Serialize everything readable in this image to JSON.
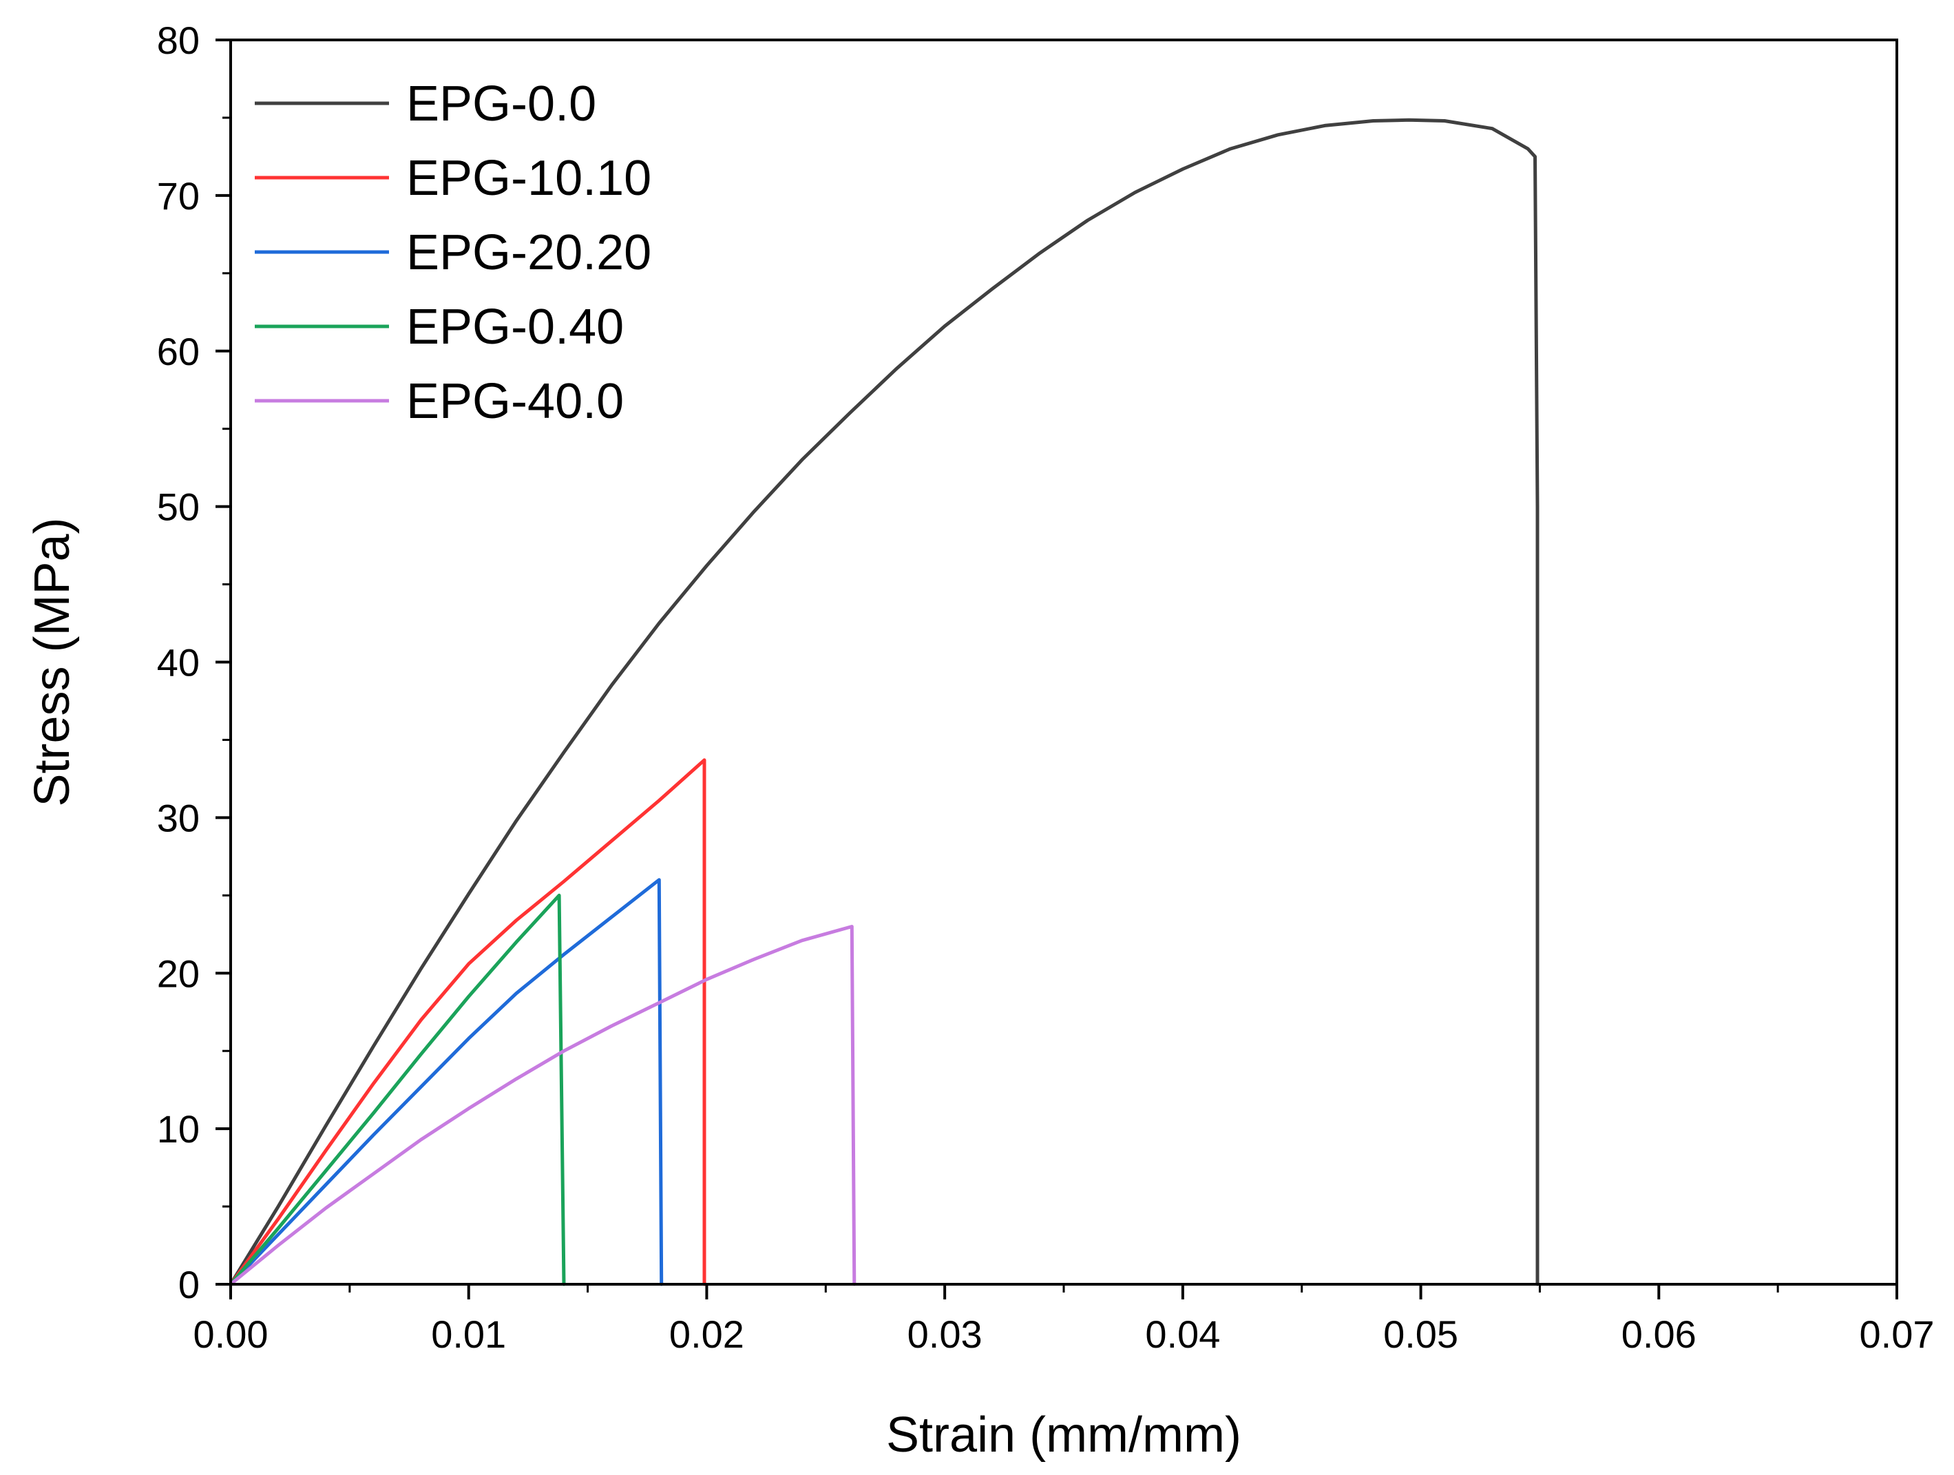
{
  "chart_data": {
    "type": "line",
    "title": "",
    "xlabel": "Strain (mm/mm)",
    "ylabel": "Stress (MPa)",
    "xlim": [
      0,
      0.07
    ],
    "ylim": [
      0,
      80
    ],
    "xticks": [
      0.0,
      0.01,
      0.02,
      0.03,
      0.04,
      0.05,
      0.06,
      0.07
    ],
    "yticks": [
      0,
      10,
      20,
      30,
      40,
      50,
      60,
      70,
      80
    ],
    "xtick_labels": [
      "0.00",
      "0.01",
      "0.02",
      "0.03",
      "0.04",
      "0.05",
      "0.06",
      "0.07"
    ],
    "ytick_labels": [
      "0",
      "10",
      "20",
      "30",
      "40",
      "50",
      "60",
      "70",
      "80"
    ],
    "grid": false,
    "legend_position": "top-left",
    "series": [
      {
        "name": "EPG-0.0",
        "color": "#404040",
        "x": [
          0,
          0.002,
          0.004,
          0.006,
          0.008,
          0.01,
          0.012,
          0.014,
          0.016,
          0.018,
          0.02,
          0.022,
          0.024,
          0.026,
          0.028,
          0.03,
          0.032,
          0.034,
          0.036,
          0.038,
          0.04,
          0.042,
          0.044,
          0.046,
          0.048,
          0.0495,
          0.051,
          0.053,
          0.0545,
          0.0548,
          0.0549,
          0.0549
        ],
        "y": [
          0,
          5.0,
          10.2,
          15.3,
          20.3,
          25.1,
          29.8,
          34.2,
          38.5,
          42.5,
          46.2,
          49.7,
          53.0,
          56.0,
          58.9,
          61.6,
          64.0,
          66.3,
          68.4,
          70.2,
          71.7,
          73.0,
          73.9,
          74.5,
          74.8,
          74.85,
          74.8,
          74.3,
          73.0,
          72.5,
          50.0,
          0
        ]
      },
      {
        "name": "EPG-10.10",
        "color": "#FF3333",
        "x": [
          0,
          0.002,
          0.004,
          0.006,
          0.008,
          0.01,
          0.012,
          0.014,
          0.016,
          0.018,
          0.0199,
          0.0199
        ],
        "y": [
          0,
          4.2,
          8.6,
          12.9,
          17.0,
          20.6,
          23.4,
          25.9,
          28.5,
          31.1,
          33.7,
          0
        ]
      },
      {
        "name": "EPG-20.20",
        "color": "#1F6BD9",
        "x": [
          0,
          0.002,
          0.004,
          0.006,
          0.008,
          0.01,
          0.012,
          0.014,
          0.016,
          0.018,
          0.0181
        ],
        "y": [
          0,
          3.2,
          6.4,
          9.6,
          12.7,
          15.8,
          18.7,
          21.2,
          23.6,
          26.0,
          0
        ]
      },
      {
        "name": "EPG-0.40",
        "color": "#1AA35A",
        "x": [
          0,
          0.002,
          0.004,
          0.006,
          0.008,
          0.01,
          0.012,
          0.0138,
          0.014
        ],
        "y": [
          0,
          3.6,
          7.3,
          11.0,
          14.8,
          18.5,
          22.0,
          25.0,
          0
        ]
      },
      {
        "name": "EPG-40.0",
        "color": "#C77CE0",
        "x": [
          0,
          0.002,
          0.004,
          0.006,
          0.008,
          0.01,
          0.012,
          0.014,
          0.016,
          0.018,
          0.02,
          0.022,
          0.024,
          0.0261,
          0.0262
        ],
        "y": [
          0,
          2.5,
          4.9,
          7.1,
          9.3,
          11.3,
          13.2,
          15.0,
          16.6,
          18.1,
          19.6,
          20.9,
          22.1,
          23.0,
          0
        ]
      }
    ]
  }
}
